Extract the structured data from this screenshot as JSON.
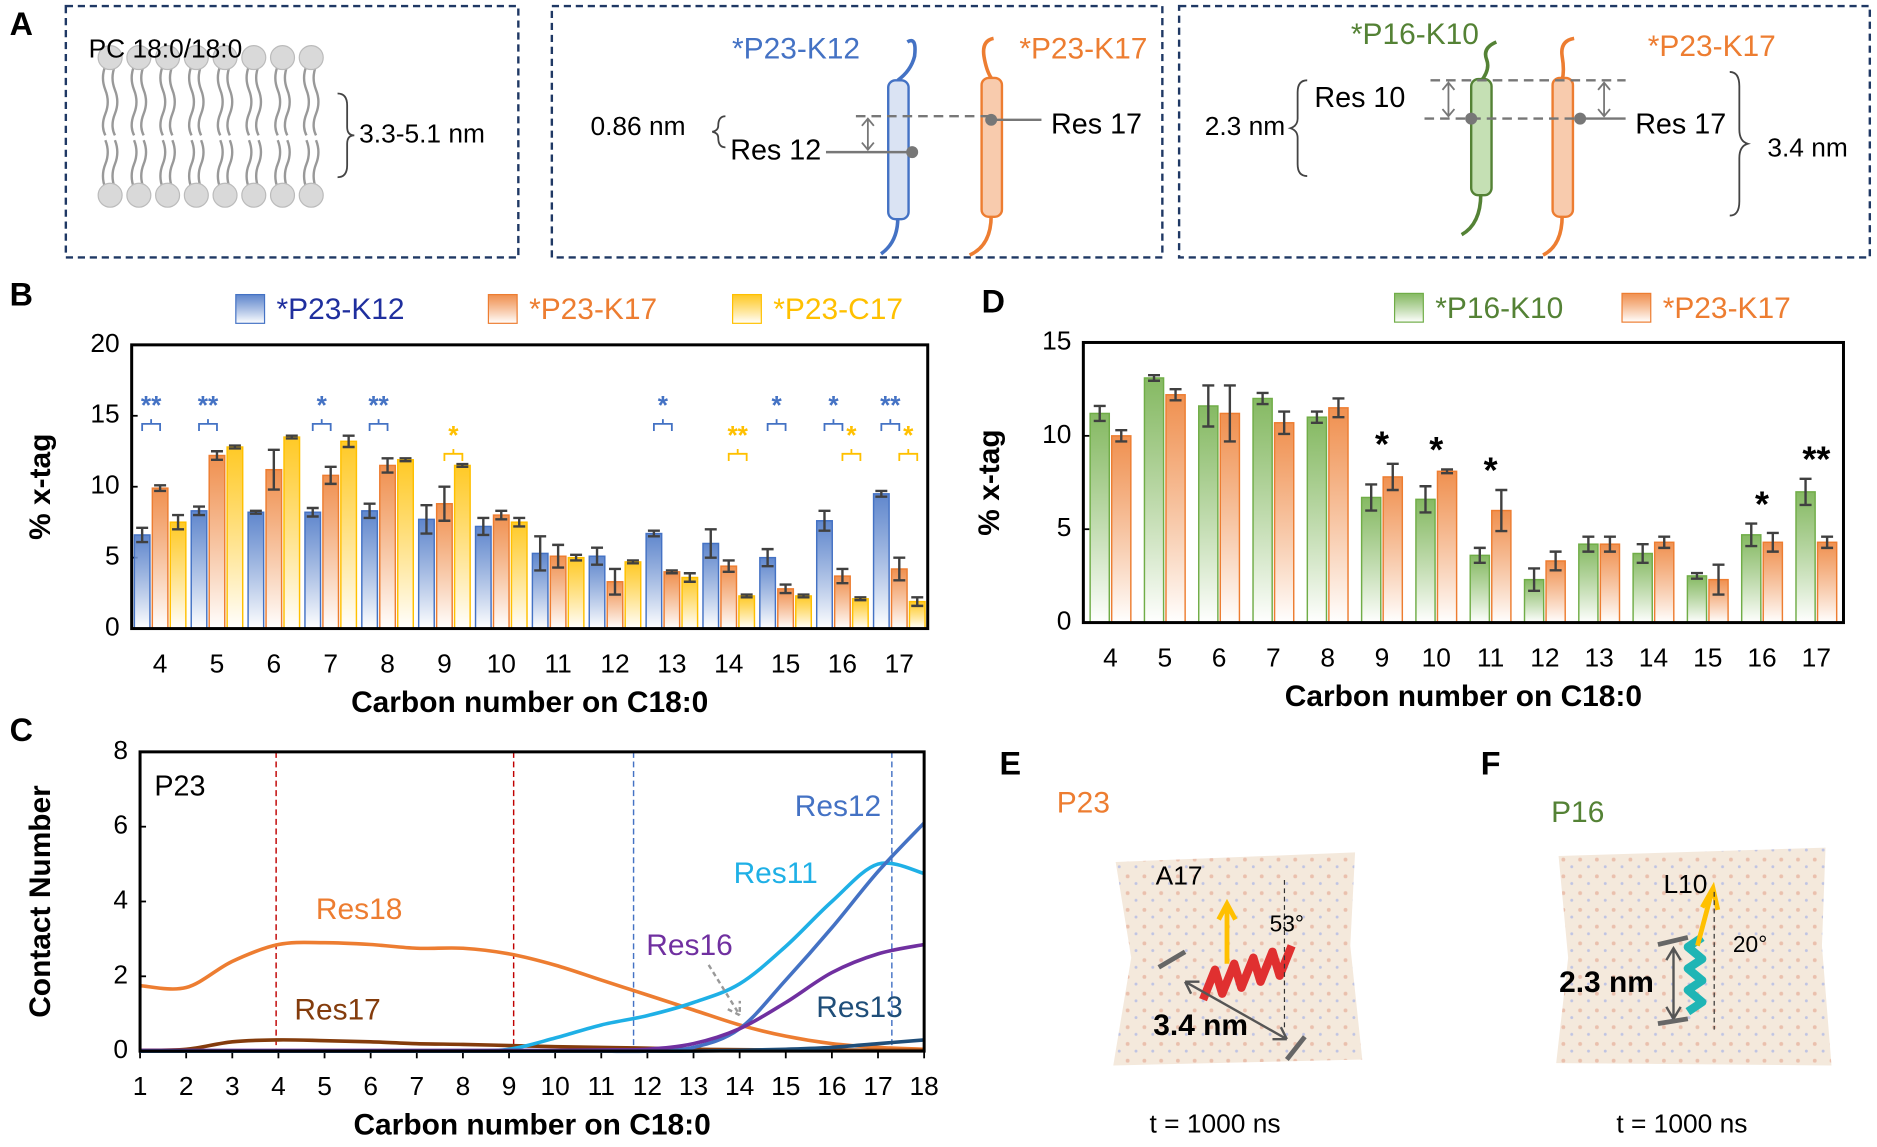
{
  "panel_labels": [
    "A",
    "B",
    "C",
    "D",
    "E",
    "F"
  ],
  "panel_a": {
    "membrane": {
      "title": "PC 18:0/18:0",
      "thickness": "3.3-5.1 nm"
    },
    "pair_1": {
      "peptide_1": "*P23-K12",
      "peptide_2": "*P23-K17",
      "distance": "0.86 nm",
      "residue_1": "Res 12",
      "residue_2": "Res 17"
    },
    "pair_2": {
      "peptide_1": "*P16-K10",
      "peptide_2": "*P23-K17",
      "distance": "2.3 nm",
      "residue_1": "Res 10",
      "residue_2": "Res 17",
      "depth": "3.4 nm"
    }
  },
  "chart_data": [
    {
      "type": "bar",
      "x_label": "Carbon number on C18:0",
      "y_label": "% x-tag",
      "categories": [
        "4",
        "5",
        "6",
        "7",
        "8",
        "9",
        "10",
        "11",
        "12",
        "13",
        "14",
        "15",
        "16",
        "17"
      ],
      "ylim": [
        0,
        20
      ],
      "yticks": [
        0,
        5,
        10,
        15,
        20
      ],
      "series": [
        {
          "name": "*P23-K12",
          "color": "#4472c4",
          "text_color": "#1f2f9e",
          "values": [
            6.6,
            8.3,
            8.2,
            8.2,
            8.3,
            7.7,
            7.2,
            5.3,
            5.1,
            6.7,
            6.0,
            5.0,
            7.6,
            9.5
          ],
          "errors": [
            0.5,
            0.3,
            0.1,
            0.3,
            0.5,
            1.0,
            0.6,
            1.2,
            0.6,
            0.2,
            1.0,
            0.6,
            0.7,
            0.2
          ],
          "significance": [
            "**",
            "**",
            null,
            "*",
            "**",
            null,
            null,
            null,
            null,
            "*",
            null,
            "*",
            "*",
            "**"
          ],
          "significance_color": "#4472c4"
        },
        {
          "name": "*P23-K17",
          "color": "#ed7d31",
          "text_color": "#ed7d31",
          "values": [
            9.9,
            12.2,
            11.2,
            10.8,
            11.5,
            8.8,
            8.0,
            5.1,
            3.3,
            4.0,
            4.4,
            2.8,
            3.7,
            4.2
          ],
          "errors": [
            0.2,
            0.3,
            1.4,
            0.6,
            0.5,
            1.2,
            0.3,
            0.8,
            0.9,
            0.1,
            0.4,
            0.3,
            0.5,
            0.8
          ]
        },
        {
          "name": "*P23-C17",
          "color": "#ffc000",
          "text_color": "#ffc000",
          "values": [
            7.5,
            12.8,
            13.5,
            13.2,
            11.9,
            11.5,
            7.5,
            5.0,
            4.7,
            3.6,
            2.3,
            2.3,
            2.1,
            1.9
          ],
          "errors": [
            0.5,
            0.1,
            0.1,
            0.4,
            0.1,
            0.1,
            0.3,
            0.2,
            0.1,
            0.3,
            0.1,
            0.1,
            0.1,
            0.3
          ],
          "significance": [
            null,
            null,
            null,
            null,
            null,
            "*",
            null,
            null,
            null,
            null,
            "**",
            null,
            "*",
            "*"
          ],
          "significance_color": "#ffc000"
        }
      ]
    },
    {
      "type": "line",
      "label": "P23",
      "x_label": "Carbon number on C18:0",
      "y_label": "Contact Number",
      "x": [
        1,
        2,
        3,
        4,
        5,
        6,
        7,
        8,
        9,
        10,
        11,
        12,
        13,
        14,
        15,
        16,
        17,
        18
      ],
      "xlim": [
        1,
        18
      ],
      "xticks": [
        1,
        2,
        3,
        4,
        5,
        6,
        7,
        8,
        9,
        10,
        11,
        12,
        13,
        14,
        15,
        16,
        17,
        18
      ],
      "ylim": [
        0,
        8
      ],
      "yticks": [
        0,
        2,
        4,
        6,
        8
      ],
      "vlines": [
        {
          "x": 3.95,
          "color": "#c00000"
        },
        {
          "x": 9.1,
          "color": "#c00000"
        },
        {
          "x": 11.7,
          "color": "#4472c4"
        },
        {
          "x": 17.3,
          "color": "#4472c4"
        }
      ],
      "series": [
        {
          "name": "Res18",
          "color": "#ed7d31",
          "values": [
            1.75,
            1.7,
            2.4,
            2.85,
            2.9,
            2.85,
            2.75,
            2.75,
            2.6,
            2.3,
            1.9,
            1.5,
            1.1,
            0.7,
            0.4,
            0.2,
            0.1,
            0.05
          ]
        },
        {
          "name": "Res17",
          "color": "#843c0c",
          "values": [
            0.02,
            0.05,
            0.25,
            0.3,
            0.28,
            0.25,
            0.2,
            0.18,
            0.15,
            0.12,
            0.1,
            0.08,
            0.05,
            0.04,
            0.03,
            0.03,
            0.02,
            0.02
          ]
        },
        {
          "name": "Res11",
          "color": "#1fb0e6",
          "values": [
            0,
            0,
            0,
            0,
            0,
            0,
            0,
            0,
            0.05,
            0.35,
            0.7,
            0.95,
            1.3,
            1.8,
            2.8,
            4.0,
            5.0,
            4.75
          ]
        },
        {
          "name": "Res12",
          "color": "#4472c4",
          "values": [
            0,
            0,
            0,
            0,
            0,
            0,
            0,
            0,
            0,
            0,
            0,
            0,
            0.1,
            0.6,
            1.9,
            3.3,
            4.8,
            6.1
          ]
        },
        {
          "name": "Res16",
          "color": "#7030a0",
          "values": [
            0.02,
            0.02,
            0.02,
            0.02,
            0.02,
            0.02,
            0.02,
            0.02,
            0.02,
            0.02,
            0.03,
            0.05,
            0.2,
            0.6,
            1.3,
            2.1,
            2.6,
            2.85
          ]
        },
        {
          "name": "Res13",
          "color": "#1f4e79",
          "values": [
            0,
            0,
            0,
            0,
            0,
            0,
            0,
            0,
            0,
            0,
            0,
            0,
            0,
            0.02,
            0.05,
            0.1,
            0.2,
            0.3
          ]
        }
      ]
    },
    {
      "type": "bar",
      "x_label": "Carbon number on C18:0",
      "y_label": "% x-tag",
      "categories": [
        "4",
        "5",
        "6",
        "7",
        "8",
        "9",
        "10",
        "11",
        "12",
        "13",
        "14",
        "15",
        "16",
        "17"
      ],
      "ylim": [
        0,
        15
      ],
      "yticks": [
        0,
        5,
        10,
        15
      ],
      "series": [
        {
          "name": "*P16-K10",
          "color": "#70ad47",
          "text_color": "#548235",
          "values": [
            11.2,
            13.1,
            11.6,
            12.0,
            11.0,
            6.7,
            6.6,
            3.6,
            2.3,
            4.2,
            3.7,
            2.5,
            4.7,
            7.0
          ],
          "errors": [
            0.4,
            0.15,
            1.1,
            0.3,
            0.3,
            0.7,
            0.7,
            0.4,
            0.6,
            0.4,
            0.5,
            0.15,
            0.6,
            0.7
          ],
          "significance": [
            null,
            null,
            null,
            null,
            null,
            "*",
            "*",
            "*",
            null,
            null,
            null,
            null,
            "*",
            "**"
          ],
          "significance_color": "#000000"
        },
        {
          "name": "*P23-K17",
          "color": "#ed7d31",
          "text_color": "#ed7d31",
          "values": [
            10.0,
            12.2,
            11.2,
            10.7,
            11.5,
            7.8,
            8.1,
            6.0,
            3.3,
            4.2,
            4.3,
            2.3,
            4.3,
            4.3
          ],
          "errors": [
            0.3,
            0.3,
            1.5,
            0.6,
            0.5,
            0.7,
            0.1,
            1.1,
            0.5,
            0.4,
            0.3,
            0.8,
            0.5,
            0.3
          ]
        }
      ]
    }
  ],
  "panel_e": {
    "peptide": "P23",
    "residue": "A17",
    "angle": "53°",
    "length": "3.4 nm",
    "time": "t = 1000 ns"
  },
  "panel_f": {
    "peptide": "P16",
    "residue": "L10",
    "angle": "20°",
    "length": "2.3 nm",
    "time": "t = 1000 ns"
  }
}
